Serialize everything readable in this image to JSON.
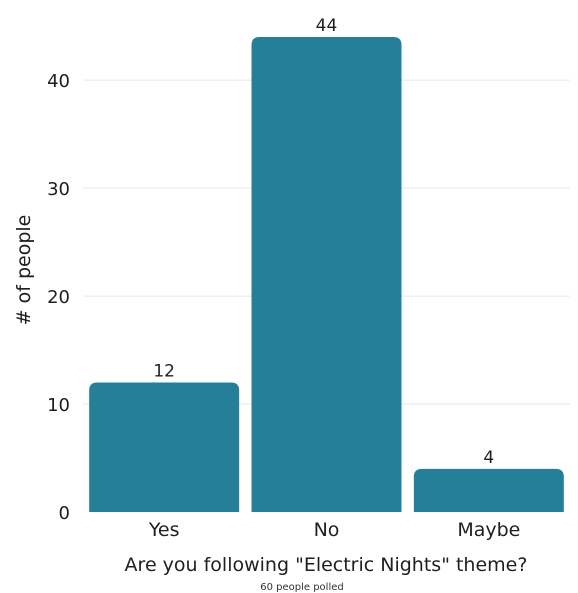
{
  "chart_data": {
    "type": "bar",
    "categories": [
      "Yes",
      "No",
      "Maybe"
    ],
    "values": [
      12,
      44,
      4
    ],
    "title": "",
    "xlabel": "Are you following \"Electric Nights\" theme?",
    "ylabel": "# of people",
    "caption": "60 people polled",
    "ylim": [
      0,
      44
    ],
    "yticks": [
      0,
      10,
      20,
      30,
      40
    ],
    "grid": true,
    "legend": "none",
    "colors": {
      "bar": "#267f99",
      "grid": "#e6e6e6",
      "text": "#1f1f1f"
    }
  }
}
